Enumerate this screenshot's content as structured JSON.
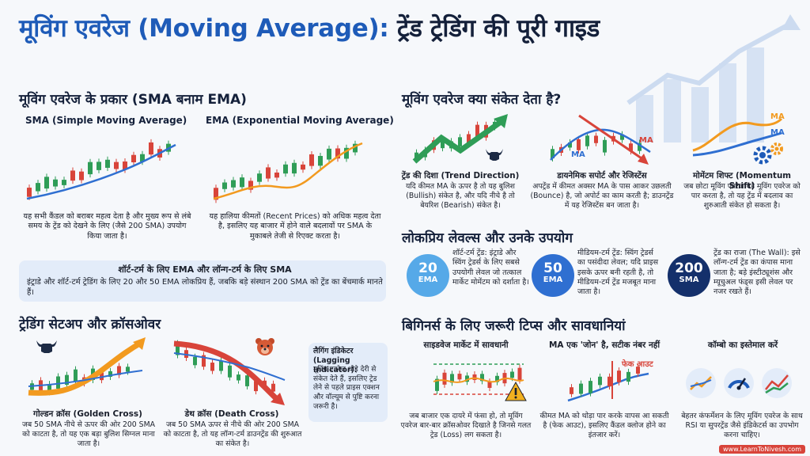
{
  "header": {
    "title_hindi": "मूविंग एवरेज",
    "title_english": "(Moving Average):",
    "title_rest": "ट्रेंड ट्रेडिंग की पूरी गाइड"
  },
  "types": {
    "title": "मूविंग एवरेज के प्रकार (SMA बनाम EMA)",
    "sma": {
      "label": "SMA (Simple Moving Average)",
      "desc": "यह सभी कैंडल को बराबर महत्व देता है और मुख्य रूप से लंबे समय के ट्रेंड को देखने के लिए (जैसे 200 SMA) उपयोग किया जाता है।"
    },
    "ema": {
      "label": "EMA (Exponential Moving Average)",
      "desc": "यह हालिया कीमतों (Recent Prices) को अधिक महत्व देता है, इसलिए यह बाजार में होने वाले बदलावों पर SMA के मुकाबले तेजी से रिएक्ट करता है।"
    },
    "note_title": "शॉर्ट-टर्म के लिए EMA और लॉन्ग-टर्म के लिए SMA",
    "note_body": "इंट्राडे और शॉर्ट-टर्म ट्रेडिंग के लिए 20 और 50 EMA लोकप्रिय हैं, जबकि बड़े संस्थान 200 SMA को ट्रेंड का बेंचमार्क मानते हैं।"
  },
  "signals": {
    "title": "मूविंग एवरेज क्या संकेत देता है?",
    "items": [
      {
        "title": "ट्रेंड की दिशा (Trend Direction)",
        "desc": "यदि कीमत MA के ऊपर है तो यह बुलिश (Bullish) संकेत है, और यदि नीचे है तो बेयरिश (Bearish) संकेत है।"
      },
      {
        "title": "डायनेमिक सपोर्ट और रेजिस्टेंस",
        "desc": "अपट्रेंड में कीमत अक्सर MA के पास आकर उछलती (Bounce) है, जो अपोर्ट का काम करती है; डाउनट्रेंड में यह रेजिस्टेंस बन जाता है।",
        "chart_ma": "MA"
      },
      {
        "title": "मोमेंटम शिफ्ट (Momentum Shift)",
        "desc": "जब छोटा मूविंग एवरेज बड़े मूविंग एवरेज को पार करता है, तो यह ट्रेंड में बदलाव का शुरुआती संकेत हो सकता है।",
        "ma_label": "MA"
      }
    ]
  },
  "levels": {
    "title": "लोकप्रिय लेवल्स और उनके उपयोग",
    "items": [
      {
        "num": "20",
        "type": "EMA",
        "desc": "शॉर्ट-टर्म ट्रेंड: इंट्राडे और स्विंग ट्रेडर्स के लिए सबसे उपयोगी लेवल जो तत्काल मार्केट मोमेंटम को दर्शाता है।"
      },
      {
        "num": "50",
        "type": "EMA",
        "desc": "मीडियम-टर्म ट्रेंड: स्विंग ट्रेडर्स का पसंदीदा लेवल; यदि प्राइस इसके ऊपर बनी रहती है, तो मीडियम-टर्म ट्रेंड मजबूत माना जाता है।"
      },
      {
        "num": "200",
        "type": "SMA",
        "desc": "ट्रेंड का राजा (The Wall): इसे लॉन्ग-टर्म ट्रेंड का कंपास माना जाता है; बड़े इंस्टीट्यूशंस और म्यूचुअल फंड्स इसी लेवल पर नजर रखते हैं।"
      }
    ]
  },
  "setups": {
    "title": "ट्रेडिंग सेटअप और क्रॉसओवर",
    "golden": {
      "title": "गोल्डन क्रॉस (Golden Cross)",
      "desc": "जब 50 SMA नीचे से ऊपर की ओर 200 SMA को काटता है, तो यह एक बड़ा बुलिश सिग्नल माना जाता है।"
    },
    "death": {
      "title": "डेथ क्रॉस (Death Cross)",
      "desc": "जब 50 SMA ऊपर से नीचे की ओर 200 SMA को काटता है, तो यह लॉन्ग-टर्म डाउनट्रेंड की शुरुआत का संकेत है।"
    },
    "lagging_title": "लैगिंग इंडिकेटर (Lagging Indicator):",
    "lagging_desc": "मूविंग एवरेज थोड़े देरी से संकेत देते हैं, इसलिए ट्रेड लेने से पहले प्राइस एक्शन और वॉल्यूम से पुष्टि करना जरूरी है।"
  },
  "tips": {
    "title": "बिगिनर्स के लिए जरूरी टिप्स और सावधानियां",
    "items": [
      {
        "title": "साइडवेज मार्केट में सावधानी",
        "desc": "जब बाजार एक दायरे में फंसा हो, तो मूविंग एवरेज बार-बार क्रॉसओवर दिखाते है जिनसे गलत ट्रेड (Loss) लग सकता है।"
      },
      {
        "title": "MA एक 'जोन' है, सटीक नंबर नहीं",
        "desc": "कीमत MA को थोड़ा पार करके वापस आ सकती है (फेक आउट), इसलिए कैंडल क्लोज होने का इंतजार करें।",
        "fake_label": "फेक आउट"
      },
      {
        "title": "कॉम्बो का इस्तेमाल करें",
        "desc": "बेहतर कंफर्मेशन के लिए मूविंग एवरेज के साथ RSI या सुपरट्रेंड जैसे इंडिकेटर्स का उपभोग करना चाहिए।"
      }
    ]
  },
  "footer": {
    "credit": "www.LearnToNivesh.com"
  },
  "colors": {
    "blue": "#1e5bb8",
    "navy": "#14203a",
    "green": "#2f9d57",
    "red": "#d8443a",
    "orange": "#f29a1f",
    "light_blue": "#3b7fd8"
  },
  "icons": [
    "bull-icon",
    "bear-icon",
    "warning-icon",
    "gear-icon",
    "gauge-icon"
  ]
}
